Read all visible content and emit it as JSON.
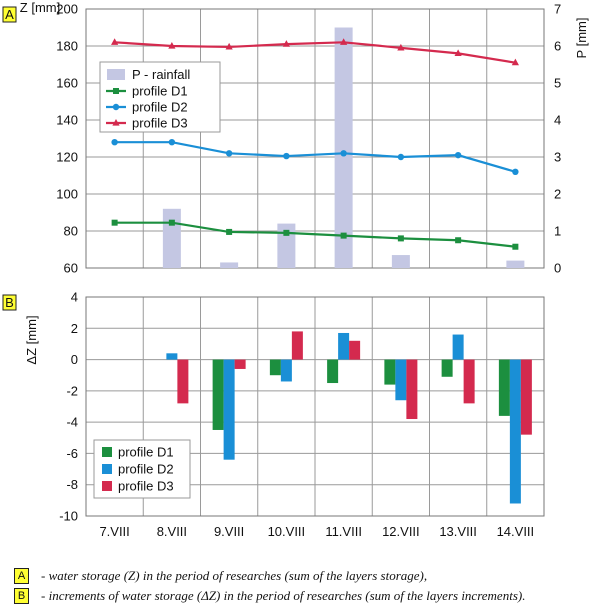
{
  "chart_data": [
    {
      "panel_label": "A",
      "type": "line",
      "categories": [
        "7.VIII",
        "8.VIII",
        "9.VIII",
        "10.VIII",
        "11.VIII",
        "12.VIII",
        "13.VIII",
        "14.VIII"
      ],
      "ylabel": "Z [mm]",
      "ylim": [
        60,
        200
      ],
      "yticks": [
        "60",
        "80",
        "100",
        "120",
        "140",
        "160",
        "180",
        "200"
      ],
      "y2label": "P [mm]",
      "y2lim": [
        0,
        7
      ],
      "y2ticks": [
        "0",
        "1",
        "2",
        "3",
        "4",
        "5",
        "6",
        "7"
      ],
      "grid": true,
      "legend": "top-left",
      "bars": {
        "name": "P - rainfall",
        "axis": "right",
        "color": "#c4c7e3",
        "values": [
          null,
          1.6,
          0.15,
          1.2,
          6.5,
          0.35,
          null,
          0.2
        ]
      },
      "series": [
        {
          "name": "profile D1",
          "color": "#1c8f3f",
          "marker": "square",
          "values": [
            84.5,
            84.5,
            79.5,
            79,
            77.5,
            76,
            75,
            71.5
          ]
        },
        {
          "name": "profile D2",
          "color": "#1a8fd6",
          "marker": "circle",
          "values": [
            128,
            128,
            122,
            120.5,
            122,
            120,
            121,
            112
          ]
        },
        {
          "name": "profile D3",
          "color": "#d42a4e",
          "marker": "triangle",
          "values": [
            182,
            180,
            179.5,
            181,
            182,
            179,
            176,
            171
          ]
        }
      ]
    },
    {
      "panel_label": "B",
      "type": "bar",
      "categories": [
        "7.VIII",
        "8.VIII",
        "9.VIII",
        "10.VIII",
        "11.VIII",
        "12.VIII",
        "13.VIII",
        "14.VIII"
      ],
      "ylabel": "ΔZ [mm]",
      "ylim": [
        -10,
        4
      ],
      "yticks": [
        "-10",
        "-8",
        "-6",
        "-4",
        "-2",
        "0",
        "2",
        "4"
      ],
      "grid": true,
      "legend": "bottom-left",
      "series": [
        {
          "name": "profile D1",
          "color": "#1c8f3f",
          "values": [
            null,
            null,
            -4.5,
            -1.0,
            -1.5,
            -1.6,
            -1.1,
            -3.6
          ]
        },
        {
          "name": "profile D2",
          "color": "#1a8fd6",
          "values": [
            null,
            0.4,
            -6.4,
            -1.4,
            1.7,
            -2.6,
            1.6,
            -9.2
          ]
        },
        {
          "name": "profile D3",
          "color": "#d42a4e",
          "values": [
            null,
            -2.8,
            -0.6,
            1.8,
            1.2,
            -3.8,
            -2.8,
            -4.8
          ]
        }
      ]
    }
  ],
  "footnotes": [
    {
      "badge": "A",
      "text": "- water storage (Z) in the period of researches (sum of the layers storage),"
    },
    {
      "badge": "B",
      "text": "- increments of water storage (ΔZ) in the period of researches (sum of the layers increments)."
    }
  ]
}
